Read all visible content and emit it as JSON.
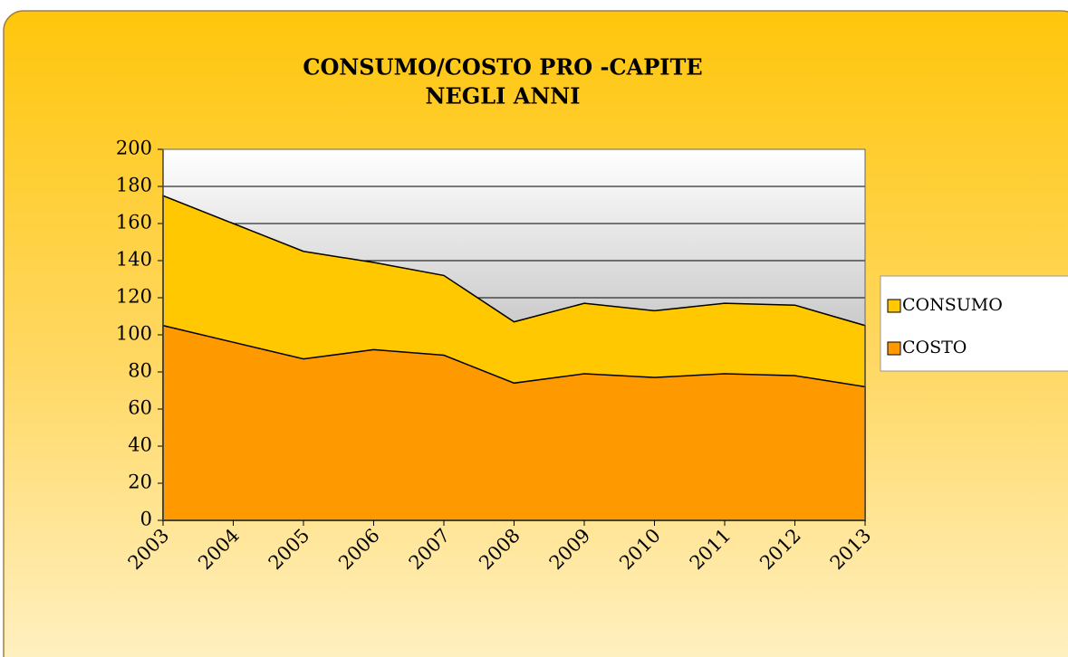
{
  "chart_data": {
    "type": "area",
    "title": [
      "CONSUMO/COSTO PRO -CAPITE",
      "NEGLI ANNI"
    ],
    "categories": [
      "2003",
      "2004",
      "2005",
      "2006",
      "2007",
      "2008",
      "2009",
      "2010",
      "2011",
      "2012",
      "2013"
    ],
    "series": [
      {
        "name": "CONSUMO",
        "color": "#ffc800",
        "values": [
          175,
          160,
          145,
          139,
          132,
          107,
          117,
          113,
          117,
          116,
          105
        ]
      },
      {
        "name": "COSTO",
        "color": "#ff9900",
        "values": [
          105,
          96,
          87,
          92,
          89,
          74,
          79,
          77,
          79,
          78,
          72
        ]
      }
    ],
    "ylim": [
      0,
      200
    ],
    "yticks": [
      0,
      20,
      40,
      60,
      80,
      100,
      120,
      140,
      160,
      180,
      200
    ],
    "grid": true,
    "legend": "right"
  }
}
